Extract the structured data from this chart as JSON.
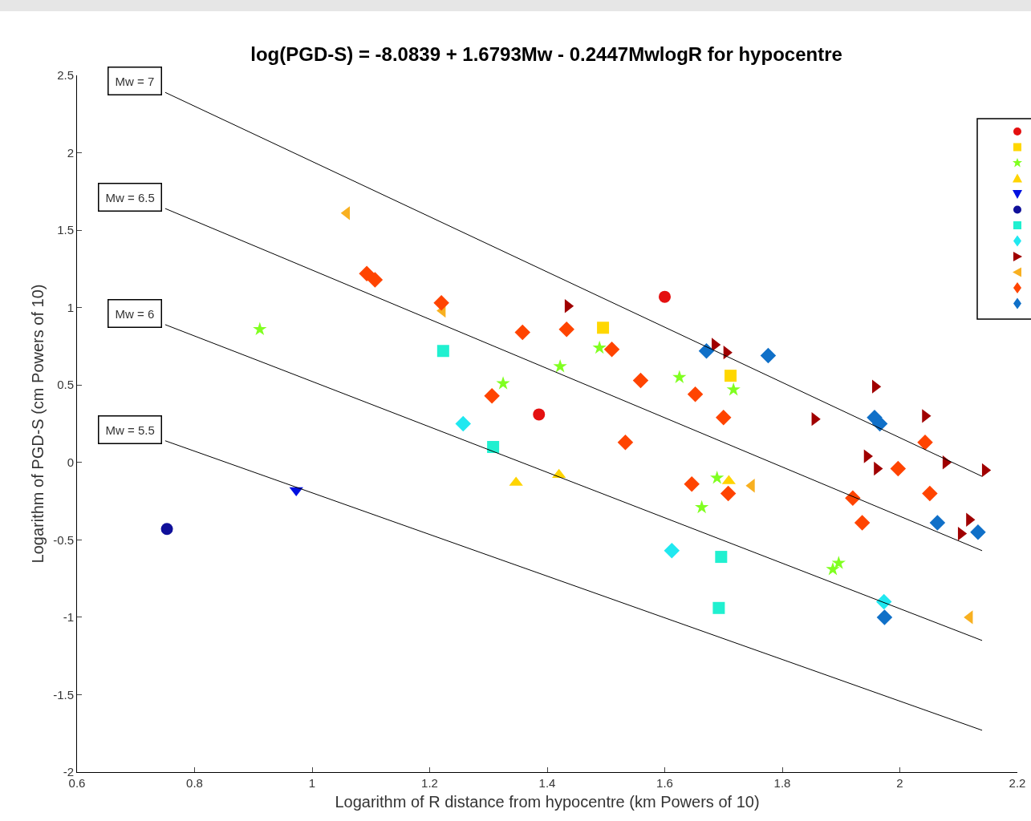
{
  "chart_data": {
    "type": "scatter",
    "title": "log(PGD-S) = -8.0839 + 1.6793Mw - 0.2447MwlogR for hypocentre",
    "xlabel": "Logarithm of R distance from hypocentre (km Powers of 10)",
    "ylabel": "Logarithm of PGD-S (cm Powers of 10)",
    "xlim": [
      0.6,
      2.2
    ],
    "xticks": [
      0.6,
      0.8,
      1,
      1.2,
      1.4,
      1.6,
      1.8,
      2,
      2.2
    ],
    "ylim": [
      -2,
      2.5
    ],
    "yticks": [
      -2,
      -1.5,
      -1,
      -0.5,
      0,
      0.5,
      1,
      1.5,
      2,
      2.5
    ],
    "grid": false,
    "annotations": [
      "Mw = 7",
      "Mw = 6.5",
      "Mw = 6",
      "Mw = 5.5"
    ],
    "series": [
      {
        "color": "#e41010",
        "marker": "circle",
        "x": [
          1.6,
          1.386
        ],
        "values": [
          1.07,
          0.31
        ]
      },
      {
        "color": "#ffd700",
        "marker": "square",
        "x": [
          1.495,
          1.712
        ],
        "values": [
          0.87,
          0.56
        ]
      },
      {
        "color": "#80ff20",
        "marker": "star",
        "x": [
          0.911,
          1.325,
          1.422,
          1.489,
          1.625,
          1.717,
          1.689,
          1.663,
          1.886,
          1.896
        ],
        "values": [
          0.86,
          0.51,
          0.62,
          0.74,
          0.55,
          0.47,
          -0.1,
          -0.29,
          -0.69,
          -0.65
        ]
      },
      {
        "color": "#ffd400",
        "marker": "triangle",
        "x": [
          1.347,
          1.42,
          1.709
        ],
        "values": [
          -0.13,
          -0.08,
          -0.12
        ]
      },
      {
        "color": "#0010e0",
        "marker": "triangle-down",
        "x": [
          0.973
        ],
        "values": [
          -0.18
        ]
      },
      {
        "color": "#10109a",
        "marker": "circle",
        "x": [
          0.753
        ],
        "values": [
          -0.43
        ]
      },
      {
        "color": "#20f0d0",
        "marker": "square",
        "x": [
          1.223,
          1.308,
          1.696,
          1.692
        ],
        "values": [
          0.72,
          0.1,
          -0.61,
          -0.94
        ]
      },
      {
        "color": "#20e8f0",
        "marker": "diamond",
        "x": [
          1.257,
          1.612,
          1.973
        ],
        "values": [
          0.25,
          -0.57,
          -0.9
        ]
      },
      {
        "color": "#a00000",
        "marker": "triangle-right",
        "x": [
          1.435,
          1.685,
          1.705,
          1.958,
          1.855,
          2.043,
          1.944,
          1.961,
          2.078,
          2.145,
          2.118,
          2.104
        ],
        "values": [
          1.01,
          0.76,
          0.71,
          0.49,
          0.28,
          0.3,
          0.04,
          -0.04,
          0,
          -0.05,
          -0.37,
          -0.46
        ]
      },
      {
        "color": "#f8b020",
        "marker": "triangle-left",
        "x": [
          1.059,
          1.222,
          1.748,
          2.119
        ],
        "values": [
          1.61,
          0.98,
          -0.15,
          -1
        ]
      },
      {
        "color": "#ff4400",
        "marker": "diamond",
        "x": [
          1.093,
          1.107,
          1.22,
          1.358,
          1.433,
          1.51,
          1.559,
          1.652,
          1.7,
          1.306,
          1.533,
          1.646,
          1.708,
          2.043,
          1.997,
          2.051,
          1.92,
          1.936
        ],
        "values": [
          1.22,
          1.18,
          1.03,
          0.84,
          0.86,
          0.73,
          0.53,
          0.44,
          0.29,
          0.43,
          0.13,
          -0.14,
          -0.2,
          0.13,
          -0.04,
          -0.2,
          -0.23,
          -0.39
        ]
      },
      {
        "color": "#1070c8",
        "marker": "diamond",
        "x": [
          1.671,
          1.776,
          1.957,
          1.966,
          2.064,
          2.133,
          1.974
        ],
        "values": [
          0.72,
          0.69,
          0.29,
          0.25,
          -0.39,
          -0.45,
          -1
        ]
      },
      {
        "type": "line",
        "color": "#000000",
        "marker": "none",
        "line_style": "solid",
        "x": [
          0.75,
          2.14
        ],
        "values": [
          2.39,
          -0.09
        ]
      },
      {
        "type": "line",
        "color": "#000000",
        "marker": "none",
        "line_style": "solid",
        "x": [
          0.75,
          2.14
        ],
        "values": [
          1.64,
          -0.57
        ]
      },
      {
        "type": "line",
        "color": "#000000",
        "marker": "none",
        "line_style": "solid",
        "x": [
          0.75,
          2.14
        ],
        "values": [
          0.89,
          -1.15
        ]
      },
      {
        "type": "line",
        "color": "#000000",
        "marker": "none",
        "line_style": "solid",
        "x": [
          0.75,
          2.14
        ],
        "values": [
          0.14,
          -1.73
        ]
      }
    ]
  }
}
